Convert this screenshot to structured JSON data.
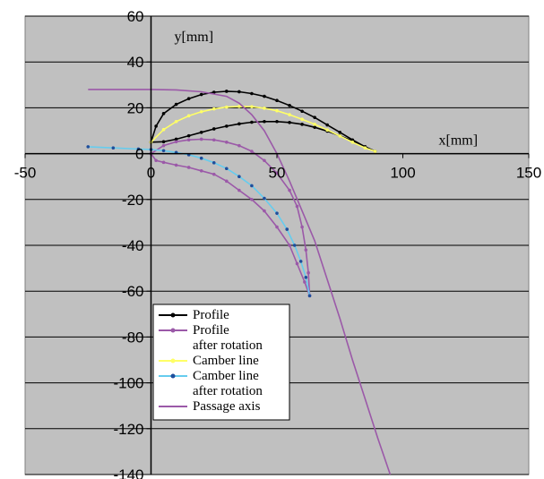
{
  "chart_data": {
    "type": "line",
    "xlabel": "x[mm]",
    "ylabel": "y[mm]",
    "xlim": [
      -50,
      150
    ],
    "ylim": [
      -140,
      60
    ],
    "x_ticks": [
      -50,
      0,
      50,
      100,
      150
    ],
    "y_ticks": [
      60,
      40,
      20,
      0,
      -20,
      -40,
      -60,
      -80,
      -100,
      -120,
      -140
    ],
    "grid": "horizontal",
    "legend_position": "bottom-left inside plot",
    "colors": {
      "plot_background": "#c0c0c0",
      "grid": "#000000"
    },
    "series": [
      {
        "name": "Profile",
        "color": "#000000",
        "marker": true,
        "points": [
          [
            0,
            5
          ],
          [
            2,
            12
          ],
          [
            5,
            17.5
          ],
          [
            10,
            21.5
          ],
          [
            15,
            24
          ],
          [
            20,
            25.8
          ],
          [
            25,
            26.8
          ],
          [
            30,
            27.2
          ],
          [
            35,
            27
          ],
          [
            40,
            26.2
          ],
          [
            45,
            25
          ],
          [
            50,
            23.2
          ],
          [
            55,
            21
          ],
          [
            60,
            18.5
          ],
          [
            65,
            15.8
          ],
          [
            70,
            12.5
          ],
          [
            75,
            9.3
          ],
          [
            80,
            6
          ],
          [
            85,
            3
          ],
          [
            89,
            1
          ],
          [
            85,
            3
          ],
          [
            80,
            5.5
          ],
          [
            75,
            7.8
          ],
          [
            70,
            9.8
          ],
          [
            65,
            11.5
          ],
          [
            60,
            12.8
          ],
          [
            55,
            13.6
          ],
          [
            50,
            14
          ],
          [
            45,
            14
          ],
          [
            40,
            13.7
          ],
          [
            35,
            13
          ],
          [
            30,
            12
          ],
          [
            25,
            10.8
          ],
          [
            20,
            9.3
          ],
          [
            15,
            7.8
          ],
          [
            10,
            6.3
          ],
          [
            5,
            5.2
          ],
          [
            0,
            5
          ]
        ]
      },
      {
        "name": "Profile after rotation",
        "color": "#9b59a8",
        "marker": true,
        "points": [
          [
            0,
            0
          ],
          [
            5,
            3.5
          ],
          [
            10,
            5.2
          ],
          [
            15,
            6
          ],
          [
            20,
            6.3
          ],
          [
            25,
            6
          ],
          [
            30,
            5
          ],
          [
            35,
            3.5
          ],
          [
            40,
            1
          ],
          [
            45,
            -3
          ],
          [
            50,
            -8.5
          ],
          [
            55,
            -16
          ],
          [
            58,
            -23
          ],
          [
            60,
            -32
          ],
          [
            61.5,
            -42
          ],
          [
            62.5,
            -52
          ],
          [
            63,
            -62
          ],
          [
            61,
            -56
          ],
          [
            58,
            -48
          ],
          [
            55,
            -40
          ],
          [
            50,
            -32
          ],
          [
            45,
            -25
          ],
          [
            40,
            -20
          ],
          [
            35,
            -16
          ],
          [
            30,
            -12
          ],
          [
            25,
            -9
          ],
          [
            20,
            -7.5
          ],
          [
            15,
            -6
          ],
          [
            10,
            -5
          ],
          [
            5,
            -3.8
          ],
          [
            2,
            -3
          ],
          [
            0,
            0
          ]
        ]
      },
      {
        "name": "Camber line",
        "color": "#ffff66",
        "marker": true,
        "points": [
          [
            0,
            5
          ],
          [
            5,
            10.5
          ],
          [
            10,
            14
          ],
          [
            15,
            16.5
          ],
          [
            20,
            18.3
          ],
          [
            25,
            19.5
          ],
          [
            30,
            20.3
          ],
          [
            35,
            20.6
          ],
          [
            40,
            20.5
          ],
          [
            45,
            19.8
          ],
          [
            50,
            18.7
          ],
          [
            55,
            17
          ],
          [
            60,
            15
          ],
          [
            65,
            12.8
          ],
          [
            70,
            10.3
          ],
          [
            75,
            7.7
          ],
          [
            80,
            5
          ],
          [
            85,
            2.5
          ],
          [
            89,
            1
          ]
        ]
      },
      {
        "name": "Camber line after rotation",
        "color": "#1f4e9b",
        "line_color": "#66ccee",
        "marker": true,
        "points": [
          [
            -25,
            3
          ],
          [
            -15,
            2.5
          ],
          [
            -5,
            2
          ],
          [
            0,
            1.8
          ],
          [
            5,
            1.3
          ],
          [
            10,
            0.5
          ],
          [
            15,
            -0.5
          ],
          [
            20,
            -2
          ],
          [
            25,
            -4
          ],
          [
            30,
            -6.5
          ],
          [
            35,
            -10
          ],
          [
            40,
            -14
          ],
          [
            45,
            -19.5
          ],
          [
            50,
            -26
          ],
          [
            54,
            -33
          ],
          [
            57,
            -40
          ],
          [
            59.5,
            -47
          ],
          [
            61.5,
            -54
          ],
          [
            63,
            -62
          ]
        ]
      },
      {
        "name": "Passage axis",
        "color": "#9b59a8",
        "marker": false,
        "points": [
          [
            -25,
            28
          ],
          [
            0,
            28
          ],
          [
            10,
            27.8
          ],
          [
            20,
            27
          ],
          [
            30,
            25
          ],
          [
            35,
            22
          ],
          [
            40,
            17
          ],
          [
            45,
            10
          ],
          [
            50,
            0
          ],
          [
            55,
            -12
          ],
          [
            60,
            -25
          ],
          [
            65,
            -38
          ],
          [
            70,
            -55
          ],
          [
            75,
            -72
          ],
          [
            80,
            -90
          ],
          [
            85,
            -107
          ],
          [
            90,
            -124
          ],
          [
            95,
            -140
          ]
        ]
      }
    ],
    "legend": [
      {
        "label_lines": [
          "Profile"
        ],
        "color": "#000000",
        "marker": true
      },
      {
        "label_lines": [
          "Profile",
          "after rotation"
        ],
        "color": "#9b59a8",
        "marker": true
      },
      {
        "label_lines": [
          "Camber line"
        ],
        "color": "#ffff66",
        "marker": true
      },
      {
        "label_lines": [
          "Camber line",
          "after rotation"
        ],
        "color": "#66ccee",
        "marker_color": "#1f4e9b",
        "marker": true
      },
      {
        "label_lines": [
          "Passage axis"
        ],
        "color": "#9b59a8",
        "marker": false
      }
    ]
  }
}
